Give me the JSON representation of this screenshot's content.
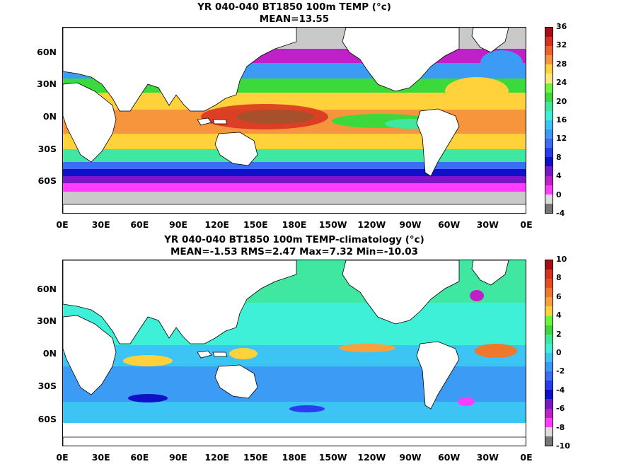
{
  "panels": [
    {
      "title1": "YR 040-040 BT1850 100m TEMP (°c)",
      "title2": "MEAN=13.55",
      "colorbar": {
        "labels": [
          "36",
          "32",
          "28",
          "24",
          "20",
          "16",
          "12",
          "8",
          "4",
          "0",
          "-4"
        ],
        "colors": [
          "#a50f15",
          "#d7301f",
          "#f0622d",
          "#f7953c",
          "#ffd23c",
          "#ffe87a",
          "#6cf53c",
          "#3bd93b",
          "#3fe7a0",
          "#3ff0d8",
          "#3cc4f5",
          "#3b9bf5",
          "#3b6df5",
          "#2a3cf0",
          "#1010c8",
          "#7a18c8",
          "#c020c8",
          "#ff3cff",
          "#dcdcdc",
          "#777777"
        ]
      },
      "y_labels": [
        "60N",
        "30N",
        "0N",
        "30S",
        "60S"
      ],
      "x_labels": [
        "0E",
        "30E",
        "60E",
        "90E",
        "120E",
        "150E",
        "180E",
        "150W",
        "120W",
        "90W",
        "60W",
        "30W",
        "0E"
      ]
    },
    {
      "title1": "YR 040-040 BT1850 100m TEMP-climatology (°c)",
      "title2": "MEAN=-1.53   RMS=2.47   Max=7.32   Min=-10.03",
      "colorbar": {
        "labels": [
          "10",
          "8",
          "6",
          "4",
          "2",
          "0",
          "-2",
          "-4",
          "-6",
          "-8",
          "-10"
        ],
        "colors": [
          "#a50f15",
          "#d7301f",
          "#e6501e",
          "#f0782d",
          "#f7a03c",
          "#ffd23c",
          "#6cf53c",
          "#3bd93b",
          "#3fe7a0",
          "#3ff0d8",
          "#3cc4f5",
          "#3b9bf5",
          "#3b6df5",
          "#2a3cf0",
          "#1010c8",
          "#7a18c8",
          "#c020c8",
          "#ff3cff",
          "#dcdcdc",
          "#777777"
        ]
      },
      "y_labels": [
        "60N",
        "30N",
        "0N",
        "30S",
        "60S"
      ],
      "x_labels": [
        "0E",
        "30E",
        "60E",
        "90E",
        "120E",
        "150E",
        "180E",
        "150W",
        "120W",
        "90W",
        "60W",
        "30W",
        "0E"
      ]
    }
  ]
}
